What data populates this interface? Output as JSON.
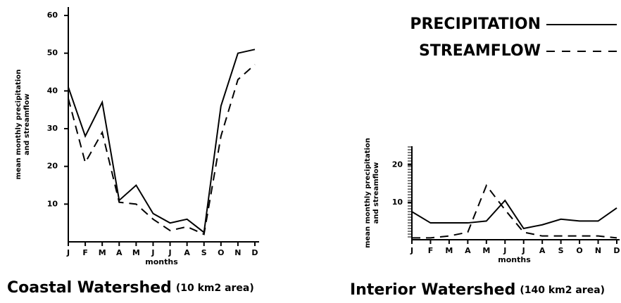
{
  "chart_data": [
    {
      "type": "line",
      "title": "Coastal Watershed",
      "subtitle": "(10 km2 area)",
      "ylabel": [
        "mean monthly precipitation",
        "and streamflow"
      ],
      "xlabel": "months",
      "categories": [
        "J",
        "F",
        "M",
        "A",
        "M",
        "J",
        "J",
        "A",
        "S",
        "O",
        "N",
        "D"
      ],
      "series": [
        {
          "name": "PRECIPITATION",
          "color": "#000000",
          "dash": false,
          "values": [
            41,
            28,
            37,
            11,
            15,
            7.5,
            5,
            6,
            2.5,
            36,
            50,
            51
          ]
        },
        {
          "name": "STREAMFLOW",
          "color": "#000000",
          "dash": true,
          "values": [
            38,
            21,
            29,
            10.5,
            10,
            6,
            3,
            4,
            2,
            28,
            43,
            47
          ]
        }
      ],
      "ylim": [
        0,
        60
      ],
      "yticks": [
        10,
        20,
        30,
        40,
        50,
        60
      ]
    },
    {
      "type": "line",
      "title": "Interior Watershed",
      "subtitle": "(140 km2 area)",
      "ylabel": [
        "mean monthly precipitation",
        "and streamflow"
      ],
      "xlabel": "months",
      "categories": [
        "J",
        "F",
        "M",
        "A",
        "M",
        "J",
        "J",
        "A",
        "S",
        "O",
        "N",
        "D"
      ],
      "series": [
        {
          "name": "PRECIPITATION",
          "color": "#000000",
          "dash": false,
          "values": [
            7.5,
            4.5,
            4.5,
            4.5,
            5,
            10.5,
            3,
            4,
            5.5,
            5,
            5,
            8.5
          ]
        },
        {
          "name": "STREAMFLOW",
          "color": "#000000",
          "dash": true,
          "values": [
            0.5,
            0.5,
            1,
            2,
            14.5,
            8,
            2,
            1,
            1,
            1,
            1,
            0.5
          ]
        }
      ],
      "ylim": [
        0,
        25
      ],
      "yticks": [
        10,
        20
      ]
    }
  ]
}
